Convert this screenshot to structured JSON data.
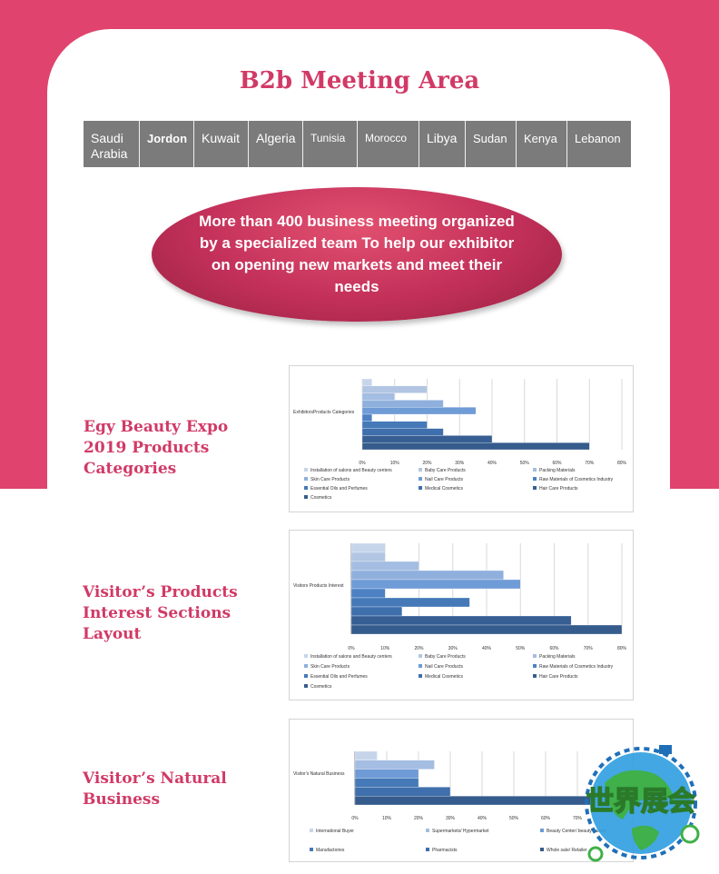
{
  "header": {
    "title": "B2b Meeting Area"
  },
  "countries": [
    "Saudi Arabia",
    "Jordon",
    "Kuwait",
    "Algeria",
    "Tunisia",
    "Morocco",
    "Libya",
    "Sudan",
    "Kenya",
    "Lebanon"
  ],
  "banner": {
    "text": "More than 400 business meeting organized by a specialized team To help our exhibitor on opening new markets and meet their needs"
  },
  "sections": [
    {
      "title": "Egy Beauty Expo 2019 Products Categories"
    },
    {
      "title": "Visitor’s Products Interest Sections Layout"
    },
    {
      "title": "Visitor’s Natural Business"
    }
  ],
  "logo": {
    "text": "世界展会"
  },
  "colors": {
    "brand_pink": "#e0446e",
    "title_pink": "#d13a66",
    "bar_palette": [
      "#c7d5ea",
      "#b2c6e3",
      "#a4bde2",
      "#8fb0dd",
      "#6f9bd6",
      "#4d81c4",
      "#4579b8",
      "#3f6fac",
      "#375f94",
      "#355c8c"
    ]
  },
  "chart_data": [
    {
      "type": "bar",
      "orientation": "horizontal",
      "ylabel": "ExhibitorsProducts Categories",
      "categories": [
        "Installation of salons and Beauty centers",
        "Baby Care Products",
        "Packing Materials",
        "Skin Care Products",
        "Nail Care Products",
        "Raw Materials of Cosmetics Industry",
        "Essential Oils and Perfumes",
        "Medical Cosmetics",
        "Hair Care Products",
        "Cosmetics"
      ],
      "values": [
        3,
        20,
        10,
        25,
        35,
        3,
        20,
        25,
        40,
        70
      ],
      "xticks": [
        "0%",
        "10%",
        "20%",
        "30%",
        "40%",
        "50%",
        "60%",
        "70%",
        "80%"
      ],
      "xlim": [
        0,
        80
      ],
      "grid": true,
      "legend": "bottom"
    },
    {
      "type": "bar",
      "orientation": "horizontal",
      "ylabel": "Visitors Products Interest",
      "categories": [
        "Installation of salons and Beauty centers",
        "Baby Care Products",
        "Packing Materials",
        "Skin Care Products",
        "Nail Care Products",
        "Raw Materials of Cosmetics Industry",
        "Essential Oils and Perfumes",
        "Medical Cosmetics",
        "Hair Care Products",
        "Cosmetics"
      ],
      "values": [
        10,
        10,
        20,
        45,
        50,
        10,
        35,
        15,
        65,
        80
      ],
      "xticks": [
        "0%",
        "10%",
        "20%",
        "30%",
        "40%",
        "50%",
        "60%",
        "70%",
        "80%"
      ],
      "xlim": [
        0,
        80
      ],
      "grid": true,
      "legend": "bottom"
    },
    {
      "type": "bar",
      "orientation": "horizontal",
      "ylabel": "Visitor's Natural Business",
      "categories": [
        "International Buyer",
        "Supermarkets/ Hypermarket",
        "Beauty Center/ beauty salons",
        "Manufactories",
        "Pharmacists",
        "Whole sale/ Retailer"
      ],
      "values": [
        7,
        25,
        20,
        20,
        30,
        75
      ],
      "xticks": [
        "0%",
        "10%",
        "20%",
        "30%",
        "40%",
        "50%",
        "60%",
        "70%"
      ],
      "xlim": [
        0,
        80
      ],
      "grid": true,
      "legend": "bottom"
    }
  ]
}
